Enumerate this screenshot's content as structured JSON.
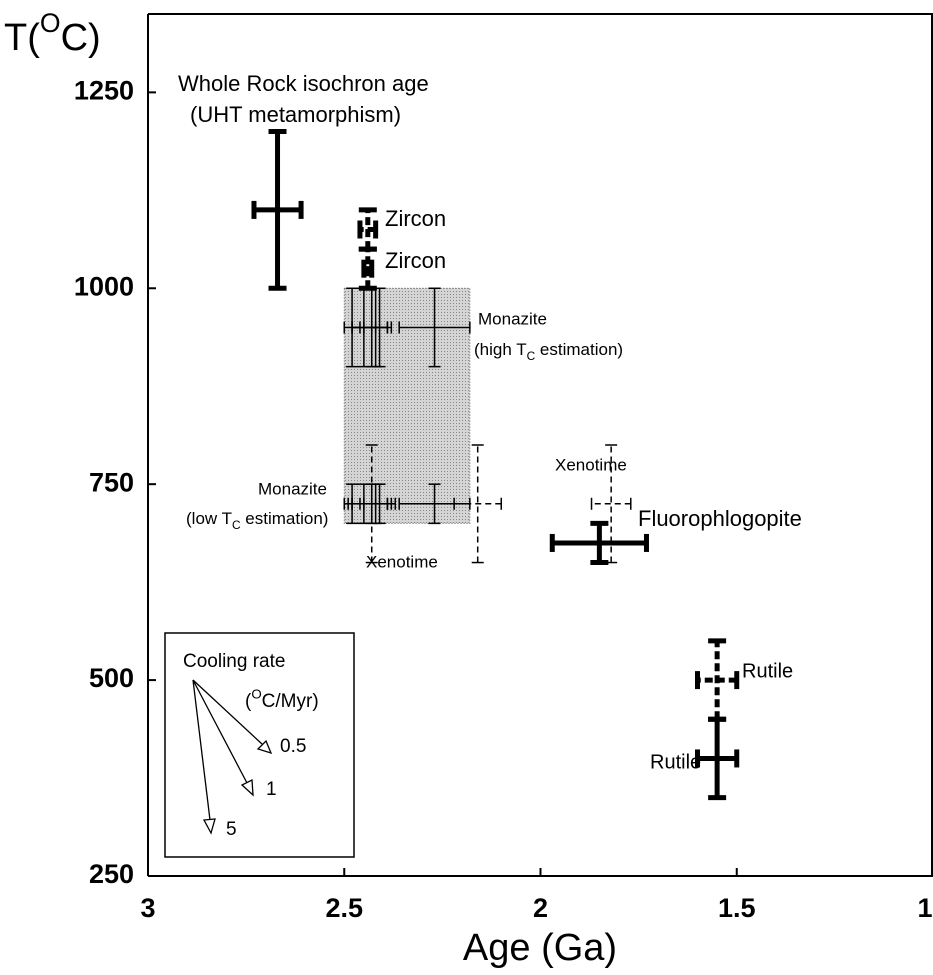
{
  "chart_data": {
    "type": "errorbar",
    "xlabel": "Age (Ga)",
    "ylabel": [
      "T(",
      "O",
      "C)"
    ],
    "xlim": [
      3,
      1
    ],
    "ylim": [
      250,
      1350
    ],
    "xticks": [
      3,
      2.5,
      2,
      1.5,
      1
    ],
    "yticks": [
      250,
      500,
      750,
      1000,
      1250
    ],
    "color": "#000000",
    "shaded_region": {
      "x": [
        2.5,
        2.18
      ],
      "y": [
        700,
        1000
      ],
      "color": "#d4d4d4"
    },
    "series": [
      {
        "line": "solid",
        "width": "thick",
        "x": [
          2.67
        ],
        "values": [
          1100
        ],
        "xerr": [
          0.06
        ],
        "yerr": [
          100
        ]
      },
      {
        "line": "dashed",
        "width": "thick",
        "x": [
          2.44,
          2.44
        ],
        "values": [
          1075,
          1025
        ],
        "xerr": [
          0.02,
          0.01
        ],
        "yerr": [
          25,
          25
        ]
      },
      {
        "line": "solid",
        "width": "thin",
        "x": [
          2.48,
          2.45,
          2.43,
          2.42,
          2.41,
          2.27
        ],
        "values": [
          950,
          950,
          950,
          950,
          950,
          950
        ],
        "xerr": [
          0.02,
          0.03,
          0.05,
          0.03,
          0.02,
          0.09
        ],
        "yerr": [
          50,
          50,
          50,
          50,
          50,
          50
        ]
      },
      {
        "line": "solid",
        "width": "thin",
        "x": [
          2.48,
          2.45,
          2.43,
          2.42,
          2.41,
          2.27
        ],
        "values": [
          725,
          725,
          725,
          725,
          725,
          725
        ],
        "xerr": [
          0.02,
          0.03,
          0.05,
          0.03,
          0.02,
          0.09
        ],
        "yerr": [
          25,
          25,
          25,
          25,
          25,
          25
        ]
      },
      {
        "line": "dashed",
        "width": "thin",
        "x": [
          2.43,
          2.16,
          1.82
        ],
        "values": [
          725,
          725,
          725
        ],
        "xerr": [
          0.06,
          0.06,
          0.05
        ],
        "yerr": [
          75,
          75,
          75
        ]
      },
      {
        "line": "solid",
        "width": "thick",
        "x": [
          1.85
        ],
        "values": [
          675
        ],
        "xerr": [
          0.12
        ],
        "yerr": [
          25
        ]
      },
      {
        "line": "dashed",
        "width": "thick",
        "x": [
          1.55
        ],
        "values": [
          500
        ],
        "xerr": [
          0.05
        ],
        "yerr": [
          50
        ]
      },
      {
        "line": "solid",
        "width": "thick",
        "x": [
          1.55
        ],
        "values": [
          400
        ],
        "xerr": [
          0.05
        ],
        "yerr": [
          50
        ]
      }
    ],
    "annotations": [
      "Whole Rock isochron age",
      "(UHT metamorphism)",
      "Zircon",
      "Zircon",
      "Monazite",
      [
        "(high T",
        "C",
        " estimation)"
      ],
      "Monazite",
      [
        "(low T",
        "C",
        " estimation)"
      ],
      "Xenotime",
      "Xenotime",
      "Fluorophlogopite",
      "Rutile",
      "Rutile"
    ],
    "inset": {
      "title": "Cooling rate",
      "unit": [
        "(",
        "O",
        "C/Myr)"
      ],
      "rates": [
        0.5,
        1,
        5
      ]
    }
  }
}
